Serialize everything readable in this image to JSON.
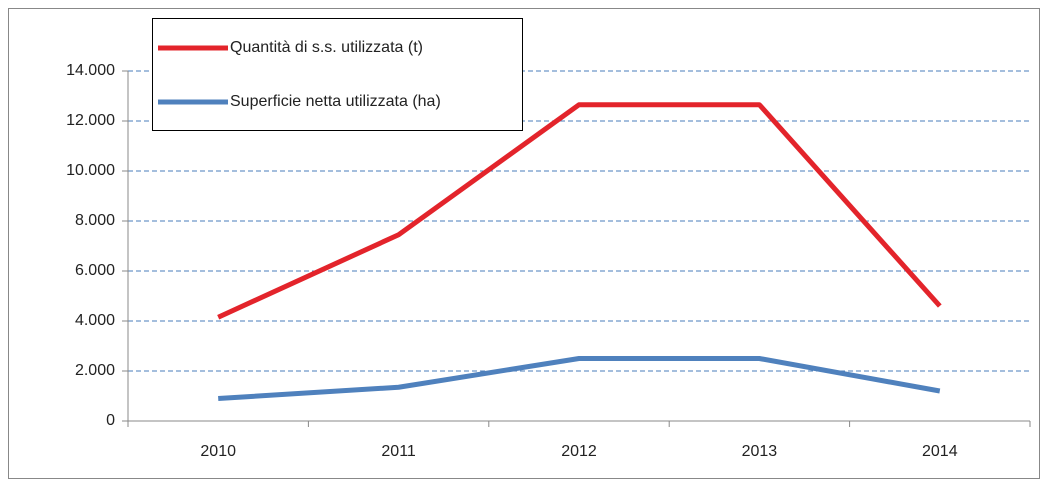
{
  "chart_data": {
    "type": "line",
    "categories": [
      "2010",
      "2011",
      "2012",
      "2013",
      "2014"
    ],
    "series": [
      {
        "name": "Quantità di s.s. utilizzata (t)",
        "color": "#e3242b",
        "values": [
          4150,
          7450,
          12650,
          12650,
          4600
        ]
      },
      {
        "name": "Superficie netta utilizzata (ha)",
        "color": "#4f81bd",
        "values": [
          900,
          1350,
          2500,
          2500,
          1200
        ]
      }
    ],
    "ylim": [
      0,
      14000
    ],
    "yticks": [
      0,
      {
        "value": 2000,
        "label": "2.000"
      },
      {
        "value": 4000,
        "label": "4.000"
      },
      {
        "value": 6000,
        "label": "6.000"
      },
      {
        "value": 8000,
        "label": "8.000"
      },
      {
        "value": 10000,
        "label": "10.000"
      },
      {
        "value": 12000,
        "label": "12.000"
      },
      {
        "value": 14000,
        "label": "14.000"
      }
    ],
    "grid": true,
    "legend": "top-left"
  }
}
